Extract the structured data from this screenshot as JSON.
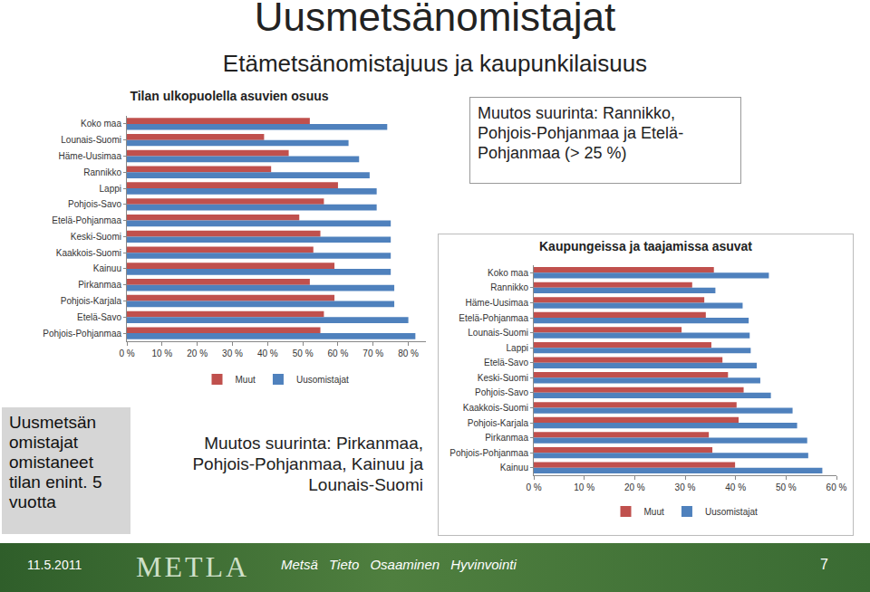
{
  "slide": {
    "title": "Uusmetsänomistajat",
    "subtitle": "Etämetsänomistajuus ja kaupunkilaisuus",
    "note_top": "Muutos suurinta: Rannikko, Pohjois-Pohjanmaa ja Etelä-Pohjanmaa (> 25 %)",
    "note_bottom": "Muutos suurinta: Pirkanmaa, Pohjois-Pohjanmaa, Kainuu ja Lounais-Suomi",
    "side_note": "Uusmetsän omistajat omistaneet tilan enint. 5 vuotta",
    "footer": {
      "date": "11.5.2011",
      "logo": "METLA",
      "slogan": "Metsä Tieto Osaaminen Hyvinvointi",
      "page": "7"
    }
  },
  "chart_data": [
    {
      "type": "bar",
      "title": "Tilan ulkopuolella asuvien osuus",
      "orientation": "horizontal",
      "categories": [
        "Koko maa",
        "Lounais-Suomi",
        "Häme-Uusimaa",
        "Rannikko",
        "Lappi",
        "Pohjois-Savo",
        "Etelä-Pohjanmaa",
        "Keski-Suomi",
        "Kaakkois-Suomi",
        "Kainuu",
        "Pirkanmaa",
        "Pohjois-Karjala",
        "Etelä-Savo",
        "Pohjois-Pohjanmaa"
      ],
      "series": [
        {
          "name": "Muut",
          "color": "#c0504d",
          "values": [
            52,
            39,
            46,
            41,
            60,
            56,
            49,
            55,
            53,
            59,
            52,
            59,
            56,
            55
          ]
        },
        {
          "name": "Uusomistajat",
          "color": "#4f81bd",
          "values": [
            74,
            63,
            66,
            69,
            71,
            71,
            75,
            75,
            75,
            75,
            76,
            76,
            80,
            82
          ]
        }
      ],
      "xlim": [
        0,
        85
      ],
      "xticks": [
        {
          "value": 0,
          "label": "0 %"
        },
        {
          "value": 10,
          "label": "10 %"
        },
        {
          "value": 20,
          "label": "20 %"
        },
        {
          "value": 30,
          "label": "30 %"
        },
        {
          "value": 40,
          "label": "40 %"
        },
        {
          "value": 50,
          "label": "50 %"
        },
        {
          "value": 60,
          "label": "60 %"
        },
        {
          "value": 70,
          "label": "70 %"
        },
        {
          "value": 80,
          "label": "80 %"
        }
      ],
      "grid": false,
      "legend": "bottom"
    },
    {
      "type": "bar",
      "title": "Kaupungeissa ja taajamissa asuvat",
      "orientation": "horizontal",
      "categories": [
        "Koko maa",
        "Rannikko",
        "Häme-Uusimaa",
        "Etelä-Pohjanmaa",
        "Lounais-Suomi",
        "Lappi",
        "Etelä-Savo",
        "Keski-Suomi",
        "Pohjois-Savo",
        "Kaakkois-Suomi",
        "Pohjois-Karjala",
        "Pirkanmaa",
        "Pohjois-Pohjanmaa",
        "Kainuu"
      ],
      "series": [
        {
          "name": "Muut",
          "color": "#c0504d",
          "values": [
            35.7,
            31.4,
            33.8,
            34.1,
            29.3,
            35.2,
            37.4,
            38.5,
            41.6,
            40.2,
            40.6,
            34.7,
            35.4,
            39.9
          ]
        },
        {
          "name": "Uusomistajat",
          "color": "#4f81bd",
          "values": [
            46.6,
            36,
            41.4,
            42.6,
            42.8,
            43,
            44.2,
            44.9,
            47,
            51.3,
            52.2,
            54.2,
            54.4,
            57.2
          ]
        }
      ],
      "xlim": [
        0,
        60
      ],
      "xticks": [
        {
          "value": 0,
          "label": "0 %"
        },
        {
          "value": 10,
          "label": "10 %"
        },
        {
          "value": 20,
          "label": "20 %"
        },
        {
          "value": 30,
          "label": "30 %"
        },
        {
          "value": 40,
          "label": "40 %"
        },
        {
          "value": 50,
          "label": "50 %"
        },
        {
          "value": 60,
          "label": "60 %"
        }
      ],
      "grid": false,
      "legend": "bottom"
    }
  ]
}
